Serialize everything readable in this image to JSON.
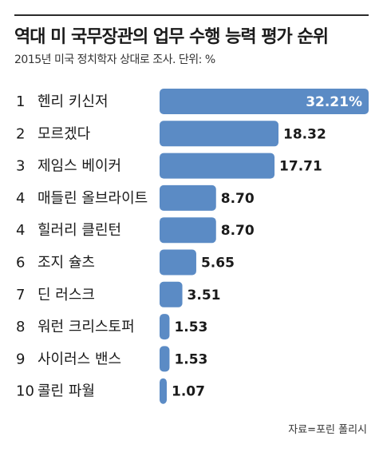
{
  "header": {
    "title": "역대 미 국무장관의 업무 수행 능력 평가 순위",
    "subtitle": "2015년 미국 정치학자 상대로 조사. 단위: %"
  },
  "source": "자료=포린 폴리시",
  "colors": {
    "bar": "#5b8bc5",
    "text": "#1a1a1a",
    "rule": "#2b2b2b"
  },
  "chart_data": {
    "type": "bar",
    "orientation": "horizontal",
    "title": "역대 미 국무장관의 업무 수행 능력 평가 순위",
    "subtitle": "2015년 미국 정치학자 상대로 조사. 단위: %",
    "ranks": [
      "1",
      "2",
      "3",
      "4",
      "4",
      "6",
      "7",
      "8",
      "9",
      "10"
    ],
    "categories": [
      "헨리 키신저",
      "모르겠다",
      "제임스 베이커",
      "매들린 올브라이트",
      "힐러리 클린턴",
      "조지 슐츠",
      "딘 러스크",
      "워런 크리스토퍼",
      "사이러스 밴스",
      "콜린 파월"
    ],
    "values": [
      32.21,
      18.32,
      17.71,
      8.7,
      8.7,
      5.65,
      3.51,
      1.53,
      1.53,
      1.07
    ],
    "value_labels": [
      "32.21%",
      "18.32",
      "17.71",
      "8.70",
      "8.70",
      "5.65",
      "3.51",
      "1.53",
      "1.53",
      "1.07"
    ],
    "xlim": [
      0,
      32.21
    ],
    "grid": false
  }
}
